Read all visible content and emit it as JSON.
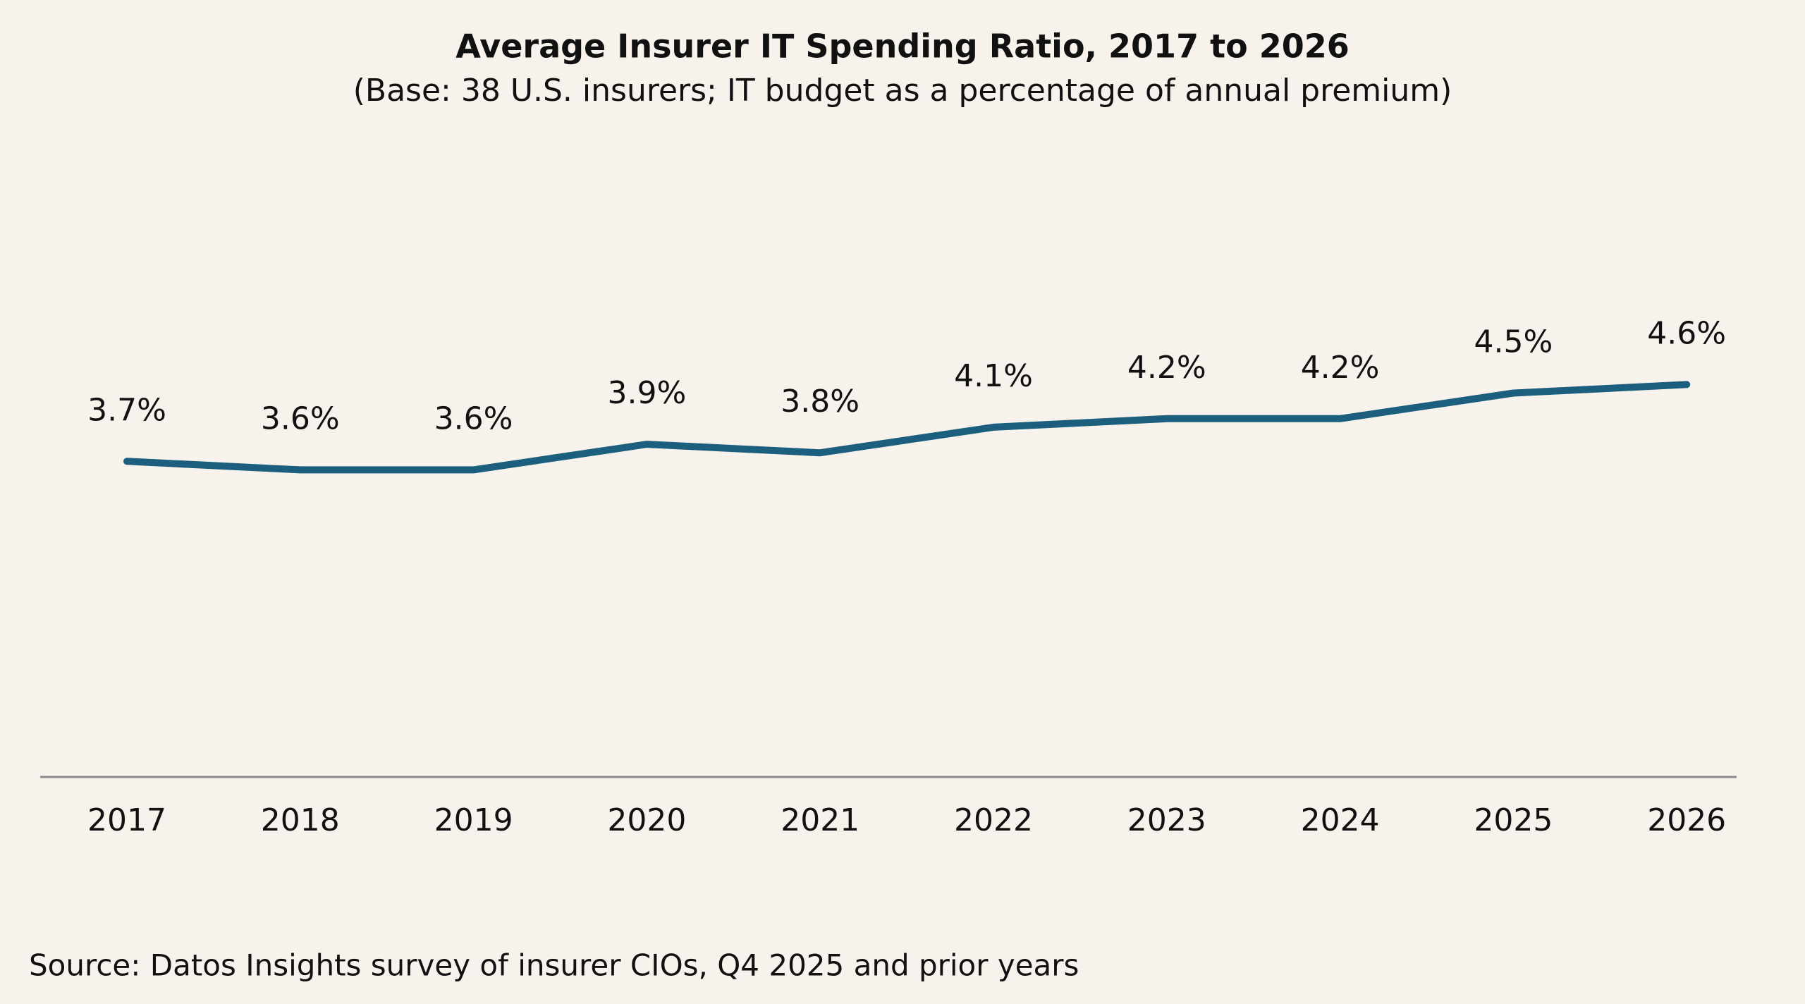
{
  "chart_data": {
    "type": "line",
    "title": "Average Insurer IT Spending Ratio, 2017 to 2026",
    "subtitle": "(Base: 38 U.S. insurers; IT budget as a percentage of annual premium)",
    "categories": [
      "2017",
      "2018",
      "2019",
      "2020",
      "2021",
      "2022",
      "2023",
      "2024",
      "2025",
      "2026"
    ],
    "values": [
      3.7,
      3.6,
      3.6,
      3.9,
      3.8,
      4.1,
      4.2,
      4.2,
      4.5,
      4.6
    ],
    "value_labels": [
      "3.7%",
      "3.6%",
      "3.6%",
      "3.9%",
      "3.8%",
      "4.1%",
      "4.2%",
      "4.2%",
      "4.5%",
      "4.6%"
    ],
    "color": "#1b5e7e",
    "ylim": [
      0,
      8
    ],
    "source": "Source: Datos Insights survey of insurer CIOs, Q4 2025 and prior years"
  }
}
